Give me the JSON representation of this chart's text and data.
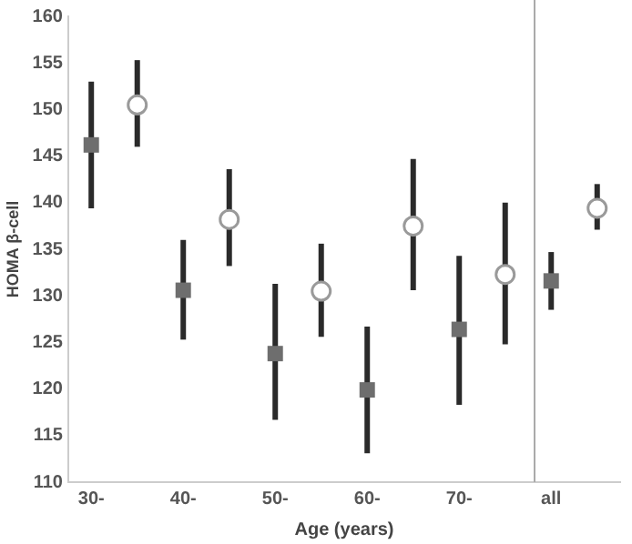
{
  "chart_data": {
    "type": "scatter",
    "xlabel": "Age (years)",
    "ylabel": "HOMA β-cell",
    "categories": [
      "30-",
      null,
      "40-",
      null,
      "50-",
      null,
      "60-",
      null,
      "70-",
      null,
      "all",
      null
    ],
    "ylim": [
      110,
      160
    ],
    "yticks": [
      110,
      115,
      120,
      125,
      130,
      135,
      140,
      145,
      150,
      155,
      160
    ],
    "grid": false,
    "legend": false,
    "series": [
      {
        "color": "#6e6e6e",
        "marker": "square",
        "values": [
          146.2,
          null,
          130.6,
          null,
          123.8,
          null,
          119.9,
          null,
          126.4,
          null,
          131.6,
          null
        ],
        "errors": [
          [
            139.4,
            153.0
          ],
          null,
          [
            125.3,
            136.0
          ],
          null,
          [
            116.7,
            131.3
          ],
          null,
          [
            113.1,
            126.7
          ],
          null,
          [
            118.3,
            134.3
          ],
          null,
          [
            128.5,
            134.7
          ],
          null
        ]
      },
      {
        "color": "#9a9a9a",
        "marker": "circle",
        "values": [
          null,
          150.5,
          null,
          138.2,
          null,
          130.5,
          null,
          137.5,
          null,
          132.3,
          null,
          139.4
        ],
        "errors": [
          null,
          [
            146.0,
            155.3
          ],
          null,
          [
            133.2,
            143.6
          ],
          null,
          [
            125.6,
            135.6
          ],
          null,
          [
            130.6,
            144.7
          ],
          null,
          [
            124.8,
            140.0
          ],
          null,
          [
            137.1,
            142.0
          ]
        ]
      }
    ]
  }
}
